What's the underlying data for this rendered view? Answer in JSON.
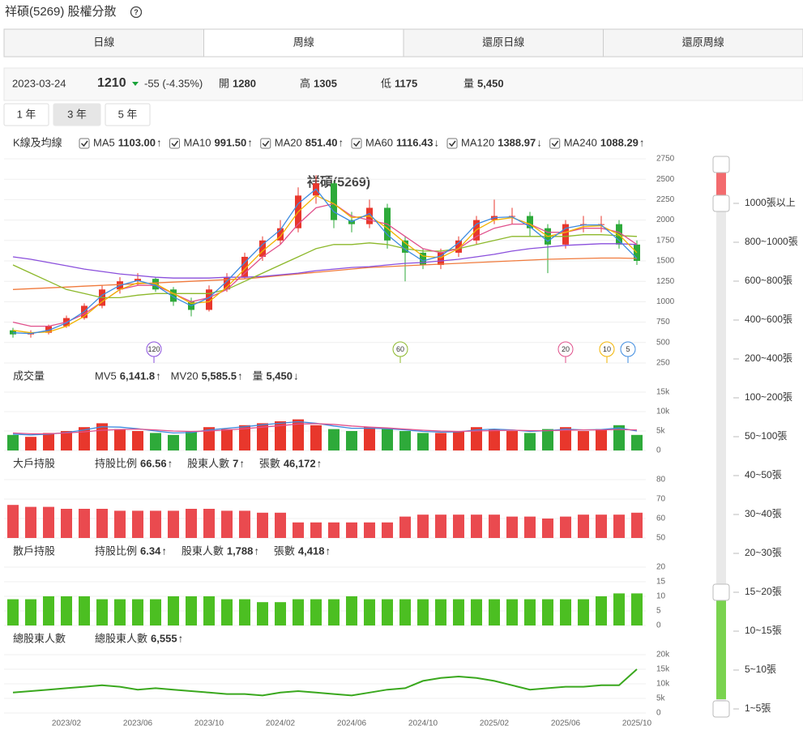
{
  "header": {
    "title": "祥碩(5269) 股權分散",
    "help": "?",
    "tabs": [
      "日線",
      "周線",
      "還原日線",
      "還原周線"
    ],
    "active_tab": 1
  },
  "quote": {
    "date": "2023-03-24",
    "price": 1210,
    "change": "-55 (-4.35%)",
    "price_color": "#1aa33a",
    "fields": [
      {
        "label": "開",
        "value": 1280
      },
      {
        "label": "高",
        "value": 1305
      },
      {
        "label": "低",
        "value": 1175
      },
      {
        "label": "量",
        "value": "5,450"
      }
    ]
  },
  "ranges": {
    "items": [
      "1 年",
      "3 年",
      "5 年"
    ],
    "active": 1
  },
  "chart_data": [
    {
      "type": "candlestick",
      "title": "K線及均線",
      "watermark": "祥碩(5269)",
      "categories": [
        null,
        null,
        null,
        "2023/02",
        null,
        null,
        null,
        "2023/06",
        null,
        null,
        null,
        "2023/10",
        null,
        null,
        null,
        "2024/02",
        null,
        null,
        null,
        "2024/06",
        null,
        null,
        null,
        "2024/10",
        null,
        null,
        null,
        "2025/02",
        null,
        null,
        null,
        "2025/06",
        null,
        null,
        null,
        "2025/10"
      ],
      "open": [
        650,
        600,
        620,
        700,
        800,
        950,
        1150,
        1250,
        1280,
        1150,
        1000,
        900,
        1150,
        1300,
        1550,
        1750,
        1900,
        2300,
        2450,
        2000,
        1950,
        2150,
        1750,
        1600,
        1450,
        1600,
        1750,
        2000,
        2050,
        2050,
        1900,
        1700,
        1950,
        1950,
        1950,
        1700
      ],
      "high": [
        680,
        650,
        720,
        830,
        980,
        1200,
        1300,
        1350,
        1300,
        1180,
        1050,
        1200,
        1350,
        1600,
        1800,
        2000,
        2400,
        2550,
        2480,
        2100,
        2250,
        2200,
        1800,
        1650,
        1650,
        1800,
        2050,
        2250,
        2150,
        2100,
        1950,
        2000,
        2050,
        2050,
        2000,
        1750
      ],
      "low": [
        560,
        560,
        600,
        680,
        780,
        920,
        1100,
        1200,
        1120,
        950,
        820,
        880,
        1120,
        1280,
        1500,
        1700,
        1850,
        2200,
        1900,
        1850,
        1900,
        1650,
        1250,
        1400,
        1400,
        1550,
        1700,
        1950,
        1950,
        1800,
        1350,
        1650,
        1850,
        1850,
        1650,
        1450
      ],
      "close": [
        600,
        620,
        700,
        800,
        950,
        1150,
        1250,
        1280,
        1150,
        1000,
        900,
        1150,
        1300,
        1550,
        1750,
        1900,
        2300,
        2450,
        2000,
        1950,
        2150,
        1750,
        1600,
        1450,
        1600,
        1750,
        2000,
        2050,
        2050,
        1900,
        1700,
        1950,
        1950,
        1950,
        1700,
        1500
      ],
      "up_color": "#e8372c",
      "down_color": "#2eaa3a",
      "series": [
        {
          "name": "MA5",
          "period": 5,
          "color": "#3d8be0",
          "last": {
            "value": 1103,
            "label": "1103.00"
          },
          "trend": "↑",
          "values": [
            620,
            610,
            650,
            740,
            880,
            1080,
            1200,
            1260,
            1200,
            1060,
            950,
            1050,
            1250,
            1480,
            1700,
            1880,
            2200,
            2380,
            2100,
            1980,
            2080,
            1820,
            1640,
            1500,
            1560,
            1720,
            1950,
            2030,
            2040,
            1920,
            1740,
            1900,
            1940,
            1940,
            1750,
            1530
          ]
        },
        {
          "name": "MA10",
          "period": 10,
          "color": "#f2b300",
          "last": {
            "value": 991.5,
            "label": "991.50"
          },
          "trend": "↑",
          "values": [
            650,
            620,
            630,
            700,
            820,
            1000,
            1150,
            1230,
            1220,
            1100,
            980,
            1000,
            1180,
            1400,
            1620,
            1800,
            2100,
            2300,
            2200,
            2030,
            2050,
            1900,
            1720,
            1560,
            1540,
            1650,
            1880,
            2000,
            2030,
            1950,
            1800,
            1850,
            1920,
            1930,
            1820,
            1600
          ]
        },
        {
          "name": "MA20",
          "period": 20,
          "color": "#e0508b",
          "last": {
            "value": 851.4,
            "label": "851.40"
          },
          "trend": "↑",
          "values": [
            750,
            700,
            700,
            750,
            850,
            1000,
            1150,
            1200,
            1200,
            1100,
            1000,
            1050,
            1150,
            1350,
            1550,
            1700,
            1950,
            2150,
            2200,
            2050,
            2000,
            1950,
            1800,
            1650,
            1600,
            1650,
            1800,
            1900,
            1950,
            1950,
            1850,
            1850,
            1900,
            1900,
            1850,
            1700
          ]
        },
        {
          "name": "MA60",
          "period": 60,
          "color": "#8cb82a",
          "last": {
            "value": 1116.43,
            "label": "1116.43"
          },
          "trend": "↓",
          "values": [
            1450,
            1350,
            1250,
            1150,
            1100,
            1050,
            1050,
            1080,
            1100,
            1100,
            1100,
            1100,
            1150,
            1250,
            1350,
            1450,
            1550,
            1650,
            1700,
            1700,
            1720,
            1700,
            1650,
            1620,
            1620,
            1650,
            1700,
            1750,
            1800,
            1800,
            1800,
            1800,
            1820,
            1820,
            1810,
            1800
          ]
        },
        {
          "name": "MA120",
          "period": 120,
          "color": "#8a4fdc",
          "last": {
            "value": 1388.97,
            "label": "1388.97"
          },
          "trend": "↓",
          "values": [
            1550,
            1520,
            1480,
            1440,
            1400,
            1370,
            1340,
            1320,
            1300,
            1290,
            1290,
            1290,
            1300,
            1300,
            1310,
            1330,
            1350,
            1380,
            1400,
            1420,
            1430,
            1450,
            1470,
            1480,
            1500,
            1520,
            1550,
            1580,
            1620,
            1650,
            1670,
            1690,
            1700,
            1710,
            1710,
            1700
          ]
        },
        {
          "name": "MA240",
          "color": "#f07a3c",
          "last": {
            "value": 1088.29,
            "label": "1088.29"
          },
          "trend": "↑",
          "values": [
            1150,
            1160,
            1170,
            1180,
            1190,
            1200,
            1210,
            1220,
            1230,
            1240,
            1250,
            1260,
            1270,
            1280,
            1300,
            1320,
            1340,
            1360,
            1380,
            1400,
            1420,
            1430,
            1440,
            1450,
            1460,
            1470,
            1480,
            1490,
            1500,
            1510,
            1520,
            1525,
            1530,
            1535,
            1535,
            1530
          ]
        }
      ],
      "ylim": [
        250,
        2750
      ],
      "yticks": [
        250,
        500,
        750,
        1000,
        1250,
        1500,
        1750,
        2000,
        2250,
        2500,
        2750
      ],
      "grid": true
    },
    {
      "type": "bar",
      "title": "成交量",
      "up_color": "#e8372c",
      "down_color": "#2eaa3a",
      "values": [
        4000,
        3500,
        4500,
        5000,
        6000,
        7000,
        5500,
        5000,
        4500,
        4000,
        5000,
        6000,
        5500,
        6500,
        7000,
        7500,
        8000,
        6500,
        5500,
        5000,
        6000,
        5500,
        5000,
        4500,
        4500,
        5000,
        6000,
        5500,
        5000,
        4500,
        5500,
        6000,
        5000,
        5500,
        6500,
        4000
      ],
      "series": [
        {
          "name": "MV5",
          "color": "#3d8be0",
          "last": {
            "value": 6141.8,
            "label": "6,141.8"
          },
          "trend": "↑",
          "values": [
            4200,
            4000,
            4200,
            4600,
            5300,
            6100,
            6000,
            5600,
            5000,
            4500,
            4600,
            5300,
            5700,
            6100,
            6600,
            7000,
            7400,
            7000,
            6300,
            5700,
            5700,
            5600,
            5300,
            4900,
            4700,
            4800,
            5300,
            5500,
            5300,
            4900,
            5100,
            5500,
            5300,
            5400,
            5800,
            5000
          ]
        },
        {
          "name": "MV20",
          "color": "#e0508b",
          "last": {
            "value": 5585.5,
            "label": "5,585.5"
          },
          "trend": "↑",
          "values": [
            4500,
            4300,
            4300,
            4500,
            4800,
            5200,
            5400,
            5500,
            5300,
            5000,
            4900,
            5000,
            5300,
            5600,
            6000,
            6400,
            6800,
            6900,
            6700,
            6300,
            6000,
            5800,
            5500,
            5200,
            5000,
            4900,
            5000,
            5100,
            5200,
            5100,
            5100,
            5200,
            5300,
            5300,
            5400,
            5300
          ]
        }
      ],
      "current": {
        "name": "量",
        "last": {
          "value": 5450,
          "label": "5,450"
        },
        "trend": "↓",
        "color": "#333333"
      },
      "ylim": [
        0,
        15000
      ],
      "yticks": [
        0,
        {
          "value": 5000,
          "label": "5k"
        },
        {
          "value": 10000,
          "label": "10k"
        },
        {
          "value": 15000,
          "label": "15k"
        }
      ],
      "grid": true
    },
    {
      "type": "bar",
      "title": "大戶持股",
      "color": "#ea4a4f",
      "values": [
        67,
        66,
        66,
        65,
        65,
        65,
        64,
        64,
        64,
        64,
        65,
        65,
        64,
        64,
        63,
        63,
        58,
        58,
        58,
        58,
        58,
        58,
        61,
        62,
        62,
        62,
        62,
        62,
        61,
        61,
        60,
        61,
        62,
        62,
        62,
        63
      ],
      "stats": [
        {
          "name": "持股比例",
          "value": 66.56,
          "trend": "↑",
          "color": "#e8372c"
        },
        {
          "name": "股東人數",
          "value": 7,
          "trend": "↑",
          "color": "#333333"
        },
        {
          "name": "張數",
          "value": 46172,
          "value_label": "46,172",
          "trend": "↑",
          "color": "#333333"
        }
      ],
      "ylim": [
        50,
        80
      ],
      "yticks": [
        50,
        60,
        70,
        80
      ],
      "grid": true
    },
    {
      "type": "bar",
      "title": "散戶持股",
      "color": "#4cbf22",
      "values": [
        9,
        9,
        10,
        10,
        10,
        9,
        9,
        9,
        9,
        10,
        10,
        10,
        9,
        9,
        8,
        8,
        9,
        9,
        9,
        10,
        9,
        9,
        9,
        9,
        9,
        9,
        9,
        9,
        9,
        9,
        9,
        9,
        9,
        10,
        11,
        11
      ],
      "stats": [
        {
          "name": "持股比例",
          "value": 6.34,
          "trend": "↑",
          "color": "#3aa81e"
        },
        {
          "name": "股東人數",
          "value": 1788,
          "value_label": "1,788",
          "trend": "↑",
          "color": "#333333"
        },
        {
          "name": "張數",
          "value": 4418,
          "value_label": "4,418",
          "trend": "↑",
          "color": "#333333"
        }
      ],
      "ylim": [
        0,
        20
      ],
      "yticks": [
        0,
        5,
        10,
        15,
        20
      ],
      "grid": true
    },
    {
      "type": "line",
      "title": "總股東人數",
      "series": [
        {
          "name": "總股東人數",
          "color": "#3aa81e",
          "last": {
            "value": 6555,
            "label": "6,555"
          },
          "trend": "↑",
          "values": [
            7000,
            7500,
            8000,
            8500,
            9000,
            9500,
            9000,
            8000,
            8500,
            8000,
            7500,
            7000,
            6500,
            6500,
            6000,
            7000,
            7500,
            7000,
            6500,
            6000,
            7000,
            8000,
            8500,
            11000,
            12000,
            12500,
            12000,
            11000,
            9500,
            8000,
            8500,
            9000,
            9000,
            9500,
            9500,
            15000
          ]
        }
      ],
      "ylim": [
        0,
        20000
      ],
      "yticks": [
        0,
        {
          "value": 5000,
          "label": "5k"
        },
        {
          "value": 10000,
          "label": "10k"
        },
        {
          "value": 15000,
          "label": "15k"
        },
        {
          "value": 20000,
          "label": "20k"
        }
      ],
      "grid": true
    }
  ],
  "slider": {
    "labels": [
      "1000張以上",
      "800~1000張",
      "600~800張",
      "400~600張",
      "200~400張",
      "100~200張",
      "50~100張",
      "40~50張",
      "30~40張",
      "20~30張",
      "15~20張",
      "10~15張",
      "5~10張",
      "1~5張"
    ]
  }
}
